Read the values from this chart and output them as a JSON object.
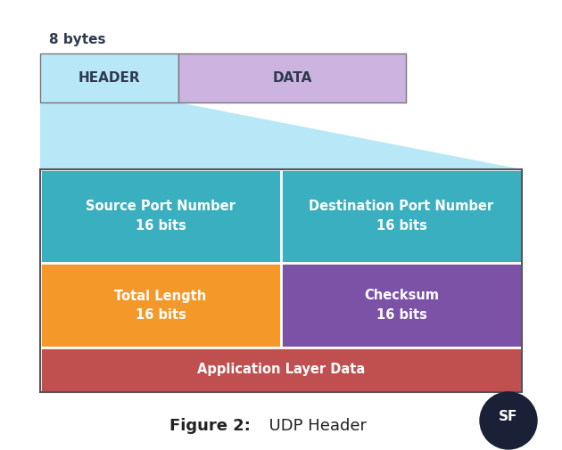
{
  "title_8bytes": "8 bytes",
  "header_label": "HEADER",
  "data_label": "DATA",
  "row1_left_label": "Source Port Number\n16 bits",
  "row1_right_label": "Destination Port Number\n16 bits",
  "row2_left_label": "Total Length\n16 bits",
  "row2_right_label": "Checksum\n16 bits",
  "row3_label": "Application Layer Data",
  "figure_label_bold": "Figure 2:",
  "figure_label_normal": "  UDP Header",
  "bg_color": "#ffffff",
  "header_box_color": "#b8e8f8",
  "data_box_color": "#ccb3e0",
  "triangle_color": "#b8e8f8",
  "row1_color": "#3aafbf",
  "row2_left_color": "#f5982a",
  "row2_right_color": "#7b52a6",
  "row3_color": "#c05050",
  "text_color_dark": "#2e3a4e",
  "text_color_white": "#ffffff",
  "grid_border_color": "#555555",
  "box_border_color": "#777777"
}
